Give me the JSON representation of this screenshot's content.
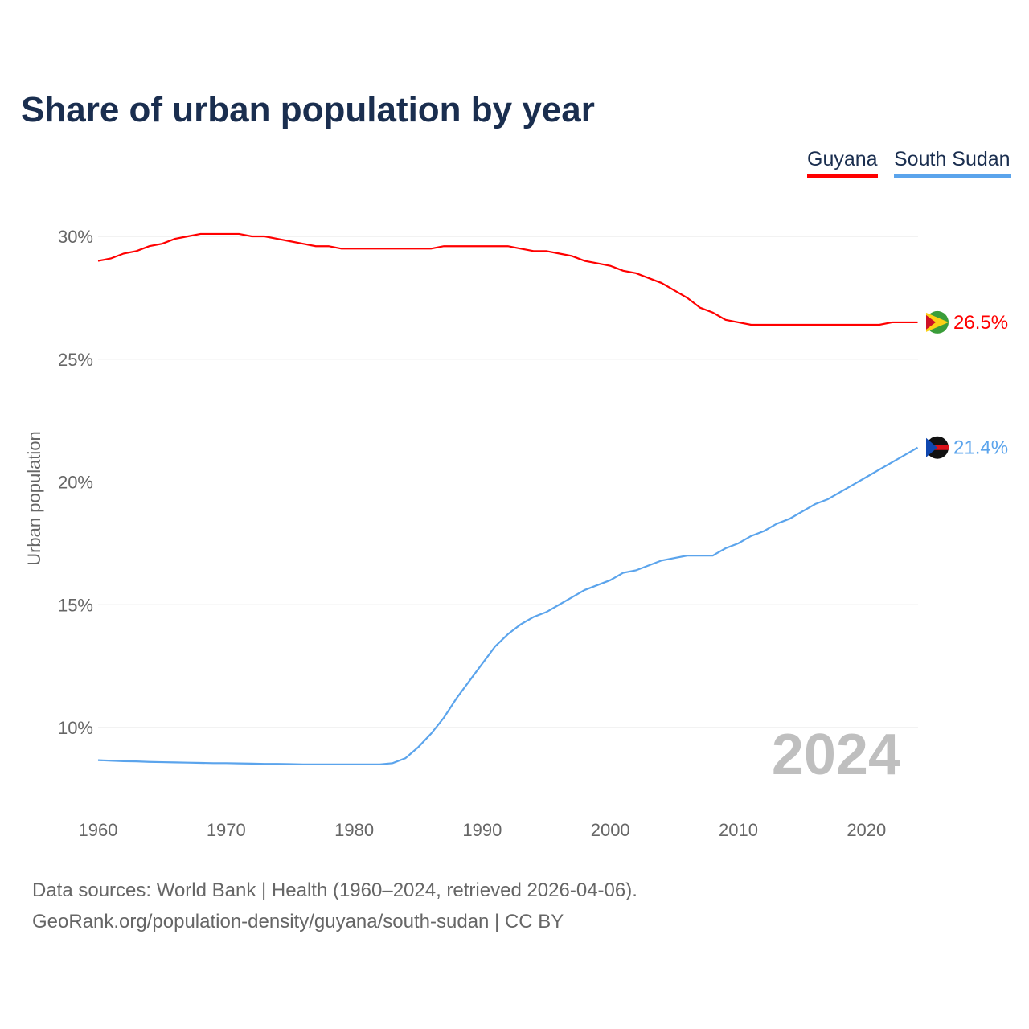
{
  "chart_data": {
    "type": "line",
    "title": "Share of urban population by year",
    "ylabel": "Urban population",
    "xlabel": "",
    "ylim": [
      7.5,
      31
    ],
    "xlim": [
      1960,
      2024
    ],
    "yticks": [
      {
        "v": 10,
        "label": "10%"
      },
      {
        "v": 15,
        "label": "15%"
      },
      {
        "v": 20,
        "label": "20%"
      },
      {
        "v": 25,
        "label": "25%"
      },
      {
        "v": 30,
        "label": "30%"
      }
    ],
    "xticks": [
      {
        "v": 1960,
        "label": "1960"
      },
      {
        "v": 1970,
        "label": "1970"
      },
      {
        "v": 1980,
        "label": "1980"
      },
      {
        "v": 1990,
        "label": "1990"
      },
      {
        "v": 2000,
        "label": "2000"
      },
      {
        "v": 2010,
        "label": "2010"
      },
      {
        "v": 2020,
        "label": "2020"
      }
    ],
    "year_label": "2024",
    "x_start": 1960,
    "series": [
      {
        "name": "Guyana",
        "color": "#ff0000",
        "end_label": "26.5%",
        "values": [
          29.0,
          29.1,
          29.3,
          29.4,
          29.6,
          29.7,
          29.9,
          30.0,
          30.1,
          30.1,
          30.1,
          30.1,
          30.0,
          30.0,
          29.9,
          29.8,
          29.7,
          29.6,
          29.6,
          29.5,
          29.5,
          29.5,
          29.5,
          29.5,
          29.5,
          29.5,
          29.5,
          29.6,
          29.6,
          29.6,
          29.6,
          29.6,
          29.6,
          29.5,
          29.4,
          29.4,
          29.3,
          29.2,
          29.0,
          28.9,
          28.8,
          28.6,
          28.5,
          28.3,
          28.1,
          27.8,
          27.5,
          27.1,
          26.9,
          26.6,
          26.5,
          26.4,
          26.4,
          26.4,
          26.4,
          26.4,
          26.4,
          26.4,
          26.4,
          26.4,
          26.4,
          26.4,
          26.5,
          26.5,
          26.5
        ]
      },
      {
        "name": "South Sudan",
        "color": "#5ba4ec",
        "end_label": "21.4%",
        "values": [
          8.67,
          8.65,
          8.63,
          8.62,
          8.6,
          8.59,
          8.58,
          8.57,
          8.56,
          8.55,
          8.55,
          8.54,
          8.53,
          8.52,
          8.52,
          8.51,
          8.5,
          8.5,
          8.5,
          8.5,
          8.5,
          8.5,
          8.5,
          8.55,
          8.75,
          9.2,
          9.75,
          10.4,
          11.2,
          11.9,
          12.6,
          13.3,
          13.8,
          14.2,
          14.5,
          14.7,
          15.0,
          15.3,
          15.6,
          15.8,
          16.0,
          16.3,
          16.4,
          16.6,
          16.8,
          16.9,
          17.0,
          17.0,
          17.0,
          17.3,
          17.5,
          17.8,
          18.0,
          18.3,
          18.5,
          18.8,
          19.1,
          19.3,
          19.6,
          19.9,
          20.2,
          20.5,
          20.8,
          21.1,
          21.4
        ]
      }
    ]
  },
  "footer": {
    "line1": "Data sources: World Bank | Health (1960–2024, retrieved 2026-04-06).",
    "line2": "GeoRank.org/population-density/guyana/south-sudan | CC BY"
  }
}
